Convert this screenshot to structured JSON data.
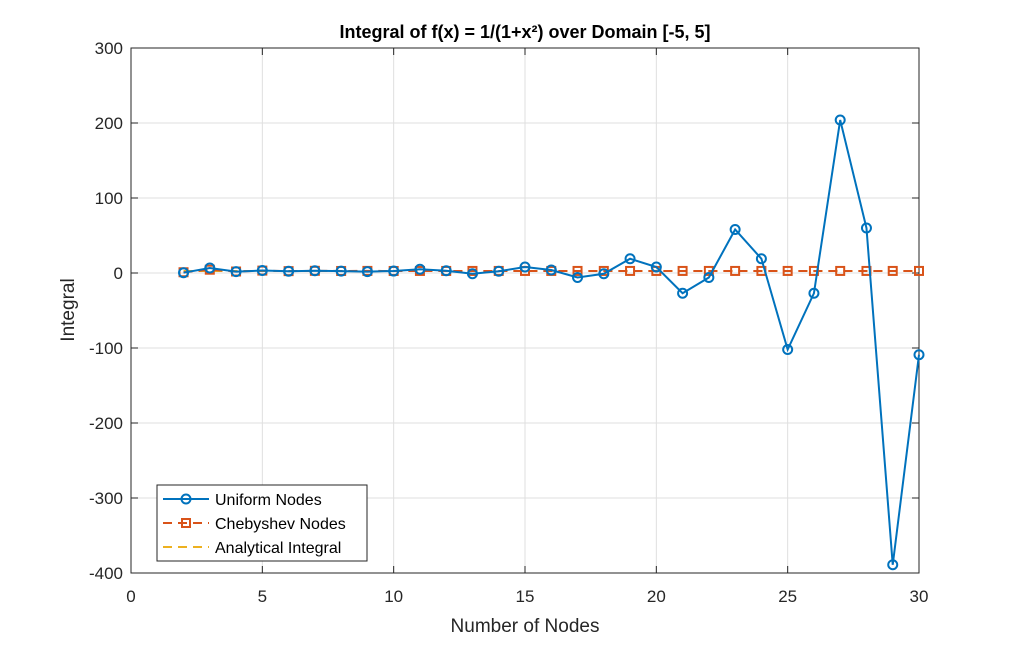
{
  "chart_data": {
    "type": "line",
    "title": "Integral of f(x) = 1/(1+x²) over Domain [-5, 5]",
    "xlabel": "Number of Nodes",
    "ylabel": "Integral",
    "x": [
      2,
      3,
      4,
      5,
      6,
      7,
      8,
      9,
      10,
      11,
      12,
      13,
      14,
      15,
      16,
      17,
      18,
      19,
      20,
      21,
      22,
      23,
      24,
      25,
      26,
      27,
      28,
      29,
      30
    ],
    "series": [
      {
        "name": "Uniform Nodes",
        "color": "#0072bd",
        "marker": "circle",
        "dash": "solid",
        "values": [
          0.4,
          6.7,
          1.8,
          3.3,
          2.4,
          3.0,
          2.5,
          1.9,
          2.6,
          5.0,
          3.0,
          -1,
          2.3,
          8,
          4,
          -6,
          -1,
          19,
          8,
          -27,
          -6,
          58,
          19,
          -102,
          -27,
          204,
          60,
          -389,
          -109
        ]
      },
      {
        "name": "Chebyshev Nodes",
        "color": "#d95319",
        "marker": "square",
        "dash": "dashed",
        "values": [
          1.0,
          4.4,
          2.0,
          3.2,
          2.5,
          2.9,
          2.7,
          2.8,
          2.7,
          2.75,
          2.74,
          2.75,
          2.75,
          2.75,
          2.75,
          2.75,
          2.75,
          2.75,
          2.75,
          2.75,
          2.75,
          2.75,
          2.75,
          2.75,
          2.75,
          2.75,
          2.75,
          2.75,
          2.75
        ]
      },
      {
        "name": "Analytical Integral",
        "color": "#edb120",
        "marker": "none",
        "dash": "dashed",
        "values": [
          2.75,
          2.75,
          2.75,
          2.75,
          2.75,
          2.75,
          2.75,
          2.75,
          2.75,
          2.75,
          2.75,
          2.75,
          2.75,
          2.75,
          2.75,
          2.75,
          2.75,
          2.75,
          2.75,
          2.75,
          2.75,
          2.75,
          2.75,
          2.75,
          2.75,
          2.75,
          2.75,
          2.75,
          2.75
        ]
      }
    ],
    "xlim": [
      0,
      30
    ],
    "xticks": [
      0,
      5,
      10,
      15,
      20,
      25,
      30
    ],
    "ylim": [
      -400,
      300
    ],
    "yticks": [
      -400,
      -300,
      -200,
      -100,
      0,
      100,
      200,
      300
    ],
    "grid": true,
    "legend": "lower left"
  }
}
